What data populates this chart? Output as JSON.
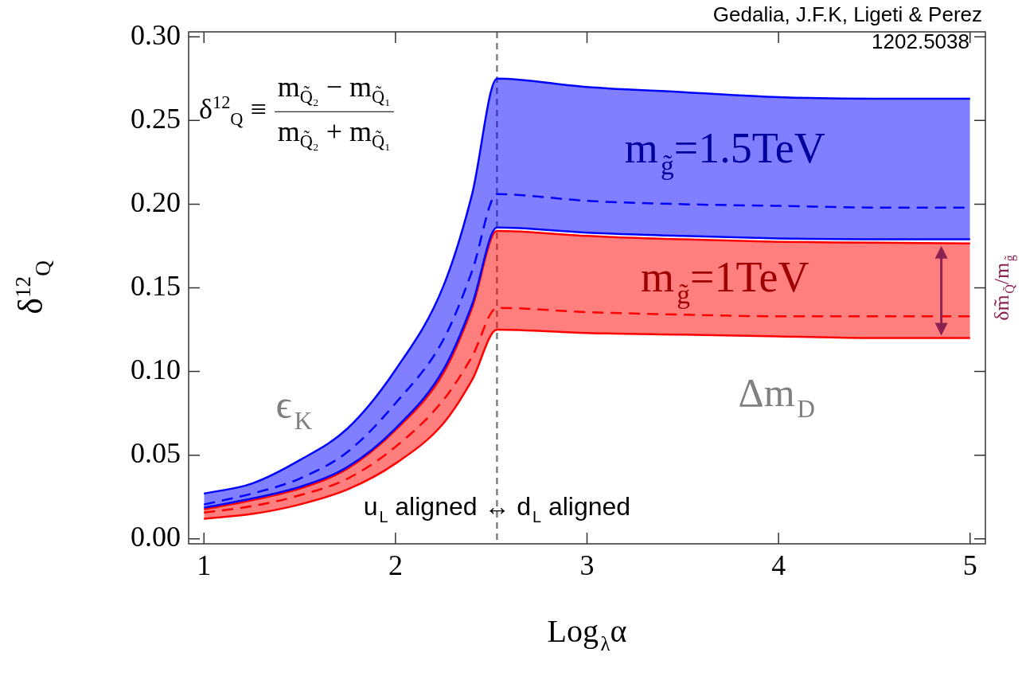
{
  "chart_data": {
    "type": "line",
    "xlabel": "Log$_{λ}$α",
    "ylabel": "δ$^{12}$$_{Q}$",
    "x": [
      1,
      1.25,
      1.5,
      1.75,
      2,
      2.25,
      2.4,
      2.53,
      3,
      3.5,
      4,
      4.5,
      5
    ],
    "series": [
      {
        "name": "m$_{g̃}$=1.5TeV",
        "color": "#0000ff",
        "line_style": "dashed",
        "values": [
          0.0205,
          0.027,
          0.036,
          0.052,
          0.081,
          0.119,
          0.16,
          0.206,
          0.202,
          0.2,
          0.199,
          0.198,
          0.198
        ],
        "lower": [
          0.0186,
          0.024,
          0.031,
          0.043,
          0.066,
          0.101,
          0.14,
          0.186,
          0.183,
          0.181,
          0.1795,
          0.179,
          0.179
        ],
        "upper": [
          0.027,
          0.033,
          0.047,
          0.066,
          0.101,
          0.151,
          0.206,
          0.275,
          0.27,
          0.267,
          0.264,
          0.263,
          0.263
        ]
      },
      {
        "color": "#0000ff",
        "line_style": "solid",
        "values": [
          0.0186,
          0.024,
          0.031,
          0.043,
          0.066,
          0.101,
          0.14,
          0.186,
          0.183,
          0.181,
          0.1795,
          0.179,
          0.179
        ]
      },
      {
        "color": "#0000ff",
        "line_style": "solid",
        "values": [
          0.027,
          0.033,
          0.047,
          0.066,
          0.101,
          0.151,
          0.206,
          0.275,
          0.27,
          0.267,
          0.264,
          0.263,
          0.263
        ]
      },
      {
        "name": "m$_{g̃}$=1TeV",
        "color": "#ff0000",
        "line_style": "dashed",
        "values": [
          0.0157,
          0.0195,
          0.026,
          0.036,
          0.055,
          0.083,
          0.109,
          0.138,
          0.1355,
          0.134,
          0.133,
          0.133,
          0.133
        ],
        "lower": [
          0.012,
          0.0148,
          0.0205,
          0.0295,
          0.045,
          0.069,
          0.095,
          0.125,
          0.123,
          0.122,
          0.121,
          0.12,
          0.12
        ],
        "upper": [
          0.0176,
          0.023,
          0.03,
          0.042,
          0.065,
          0.099,
          0.138,
          0.184,
          0.181,
          0.179,
          0.1775,
          0.177,
          0.1765
        ]
      },
      {
        "color": "#ff0000",
        "line_style": "solid",
        "values": [
          0.012,
          0.0148,
          0.0205,
          0.0295,
          0.045,
          0.069,
          0.095,
          0.125,
          0.123,
          0.122,
          0.121,
          0.12,
          0.12
        ]
      },
      {
        "color": "#ff0000",
        "line_style": "solid",
        "values": [
          0.0176,
          0.023,
          0.03,
          0.042,
          0.065,
          0.099,
          0.138,
          0.184,
          0.181,
          0.179,
          0.1775,
          0.177,
          0.1765
        ]
      }
    ],
    "xlim": [
      0.92,
      5.08
    ],
    "ylim": [
      -0.003,
      0.303
    ],
    "xticks": [
      1,
      2,
      3,
      4,
      5
    ],
    "yticks": [
      {
        "value": 0,
        "label": "0.00"
      },
      {
        "value": 0.05,
        "label": "0.05"
      },
      {
        "value": 0.1,
        "label": "0.10"
      },
      {
        "value": 0.15,
        "label": "0.15"
      },
      {
        "value": 0.2,
        "label": "0.20"
      },
      {
        "value": 0.25,
        "label": "0.25"
      },
      {
        "value": 0.3,
        "label": "0.30"
      }
    ],
    "ref_lines": [
      {
        "axis": "x",
        "value": 2.53,
        "color": "#808080",
        "line_style": "dashed"
      }
    ],
    "marker": "none",
    "grid": false,
    "annotations": [
      "Gedalia, J.F.K, Ligeti & Perez",
      "1202.5038",
      "δ$^{12}$$_{Q}$ ≡",
      "m$_{Q̃₂}$ − m$_{Q̃₁}$",
      "m$_{Q̃₂}$ + m$_{Q̃₁}$",
      "ϵ$_{K}$",
      "Δm$_{D}$",
      "u$_{L}$ aligned ↔ d$_{L}$ aligned",
      "δm̃$_{Q̃}$/m$_{g̃}$"
    ]
  }
}
